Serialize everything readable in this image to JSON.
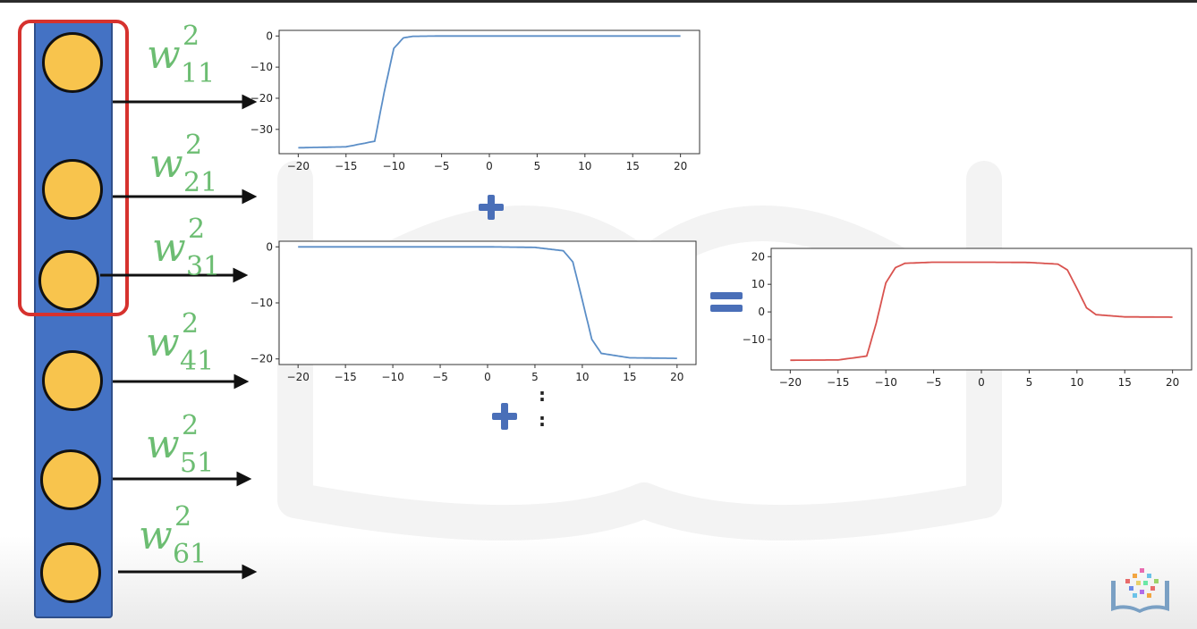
{
  "weights": [
    {
      "base": "w",
      "sup": "2",
      "sub": "11"
    },
    {
      "base": "w",
      "sup": "2",
      "sub": "21"
    },
    {
      "base": "w",
      "sup": "2",
      "sub": "31"
    },
    {
      "base": "w",
      "sup": "2",
      "sub": "41"
    },
    {
      "base": "w",
      "sup": "2",
      "sub": "51"
    },
    {
      "base": "w",
      "sup": "2",
      "sub": "61"
    }
  ],
  "operators": {
    "plus": "+",
    "equals": "=",
    "ellipsis": ":"
  },
  "colors": {
    "layer_bar": "#4472c4",
    "neuron": "#f8c44d",
    "highlight": "#d6322e",
    "weight_label": "#6cbd72",
    "sigmoid_line": "#5b8ec7",
    "sum_line": "#d9534f",
    "operator": "#4a6fb8"
  },
  "icons": {
    "logo": "book-logo-icon"
  },
  "chart_data": [
    {
      "type": "line",
      "title": "",
      "xlabel": "",
      "ylabel": "",
      "x_range": [
        -20,
        20
      ],
      "ylim": [
        -36,
        0
      ],
      "x_ticks": [
        "−20",
        "−15",
        "−10",
        "−5",
        "0",
        "5",
        "10",
        "15",
        "20"
      ],
      "y_ticks": [
        "0",
        "−10",
        "−20",
        "−30"
      ],
      "y_tick_values": [
        0,
        -10,
        -20,
        -30
      ],
      "series": [
        {
          "color": "#5b8ec7",
          "x_sample": [
            -20,
            -15,
            -12,
            -11,
            -10,
            -9,
            -8,
            -5,
            0,
            20
          ],
          "y_sample": [
            -35.9,
            -35.6,
            -33.8,
            -18,
            -4,
            -0.6,
            -0.1,
            0,
            0,
            0
          ]
        }
      ]
    },
    {
      "type": "line",
      "title": "",
      "xlabel": "",
      "ylabel": "",
      "x_range": [
        -20,
        20
      ],
      "ylim": [
        -20,
        0
      ],
      "x_ticks": [
        "−20",
        "−15",
        "−10",
        "−5",
        "0",
        "5",
        "10",
        "15",
        "20"
      ],
      "y_ticks": [
        "0",
        "−10",
        "−20"
      ],
      "y_tick_values": [
        0,
        -10,
        -20
      ],
      "series": [
        {
          "color": "#5b8ec7",
          "x_sample": [
            -20,
            0,
            5,
            8,
            9,
            10,
            11,
            12,
            15,
            20
          ],
          "y_sample": [
            0,
            0,
            -0.1,
            -0.7,
            -2.7,
            -9.5,
            -16.5,
            -19,
            -19.8,
            -19.9
          ]
        }
      ]
    },
    {
      "type": "line",
      "title": "",
      "xlabel": "",
      "ylabel": "",
      "x_range": [
        -20,
        20
      ],
      "ylim": [
        -19,
        21
      ],
      "x_ticks": [
        "−20",
        "−15",
        "−10",
        "−5",
        "0",
        "5",
        "10",
        "15",
        "20"
      ],
      "y_ticks": [
        "20",
        "10",
        "0",
        "−10"
      ],
      "y_tick_values": [
        20,
        10,
        0,
        -10
      ],
      "series": [
        {
          "color": "#d9534f",
          "x_sample": [
            -20,
            -15,
            -12,
            -11,
            -10,
            -9,
            -8,
            -5,
            0,
            5,
            8,
            9,
            10,
            11,
            12,
            15,
            20
          ],
          "y_sample": [
            -17.5,
            -17.4,
            -16,
            -4,
            10.5,
            16,
            17.6,
            18,
            18,
            17.9,
            17.3,
            15.2,
            8.5,
            1.5,
            -1,
            -1.8,
            -1.9
          ]
        }
      ]
    }
  ]
}
